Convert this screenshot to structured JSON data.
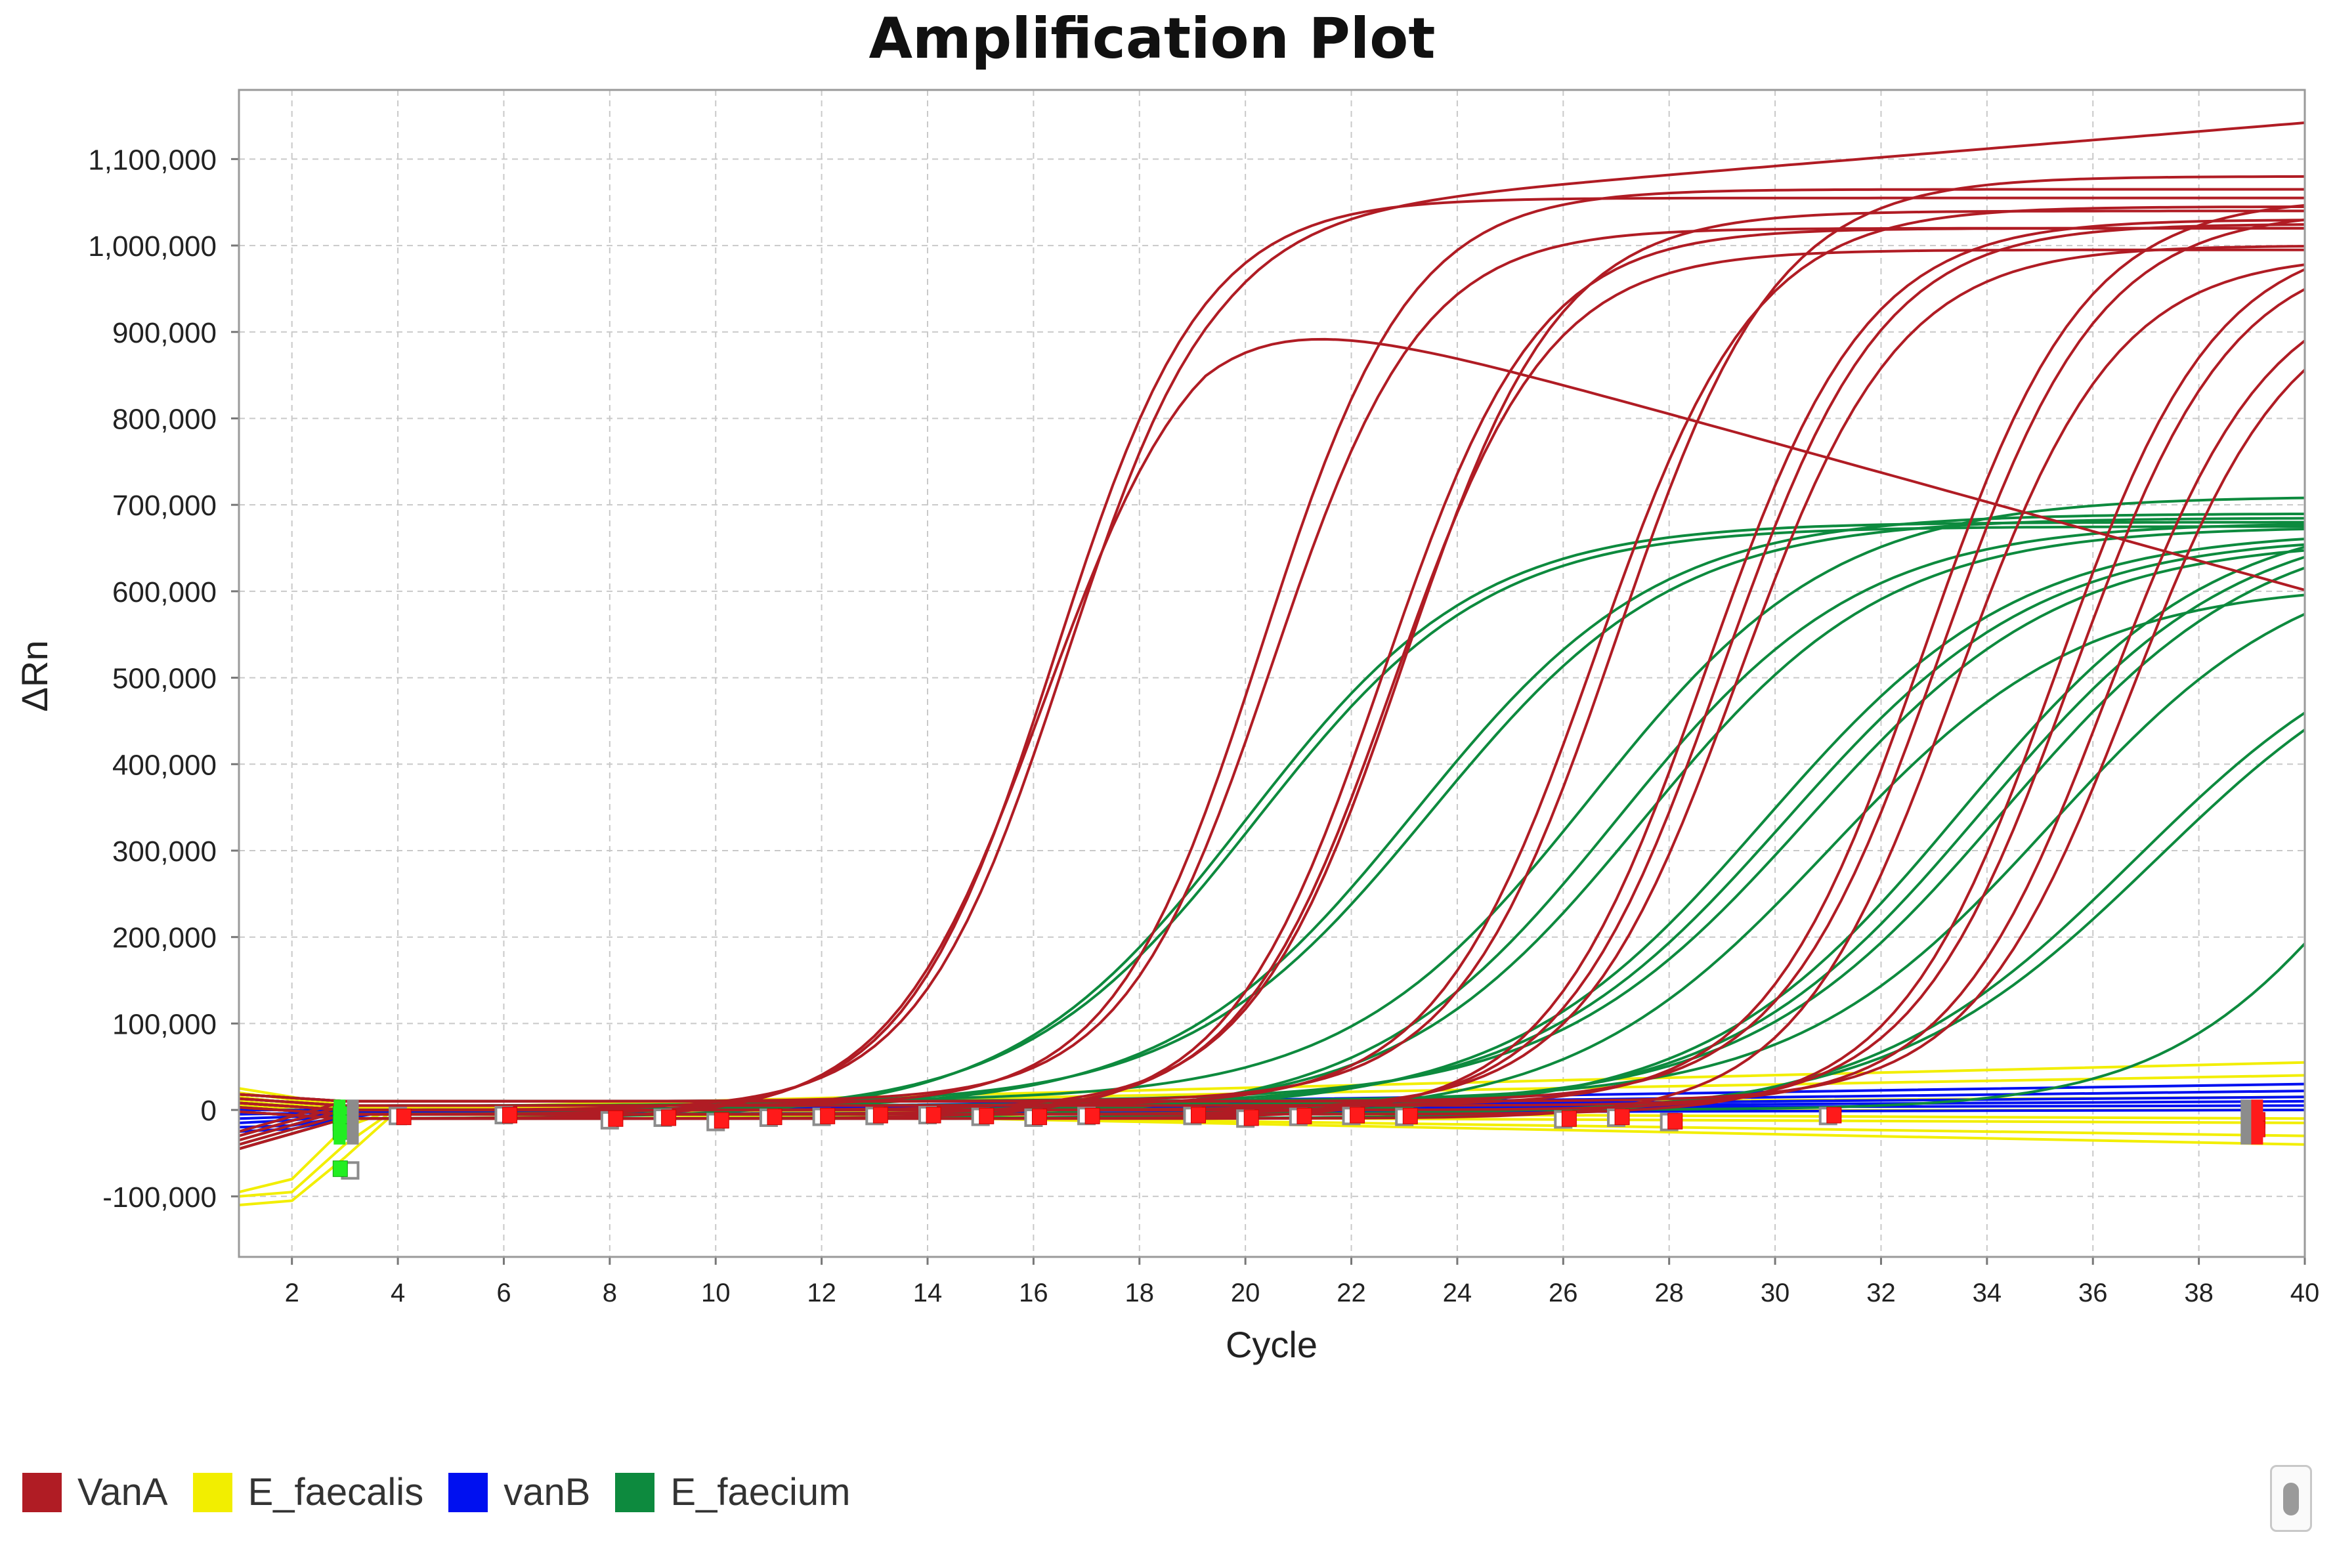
{
  "chart_data": {
    "type": "line",
    "title": "Amplification Plot",
    "xlabel": "Cycle",
    "ylabel": "ΔRn",
    "xlim": [
      1,
      40
    ],
    "ylim": [
      -170000,
      1180000
    ],
    "x_ticks": [
      "2",
      "4",
      "6",
      "8",
      "10",
      "12",
      "14",
      "16",
      "18",
      "20",
      "22",
      "24",
      "26",
      "28",
      "30",
      "32",
      "34",
      "36",
      "38",
      "40"
    ],
    "y_ticks": [
      "-100,000",
      "0",
      "100,000",
      "200,000",
      "300,000",
      "400,000",
      "500,000",
      "600,000",
      "700,000",
      "800,000",
      "900,000",
      "1,000,000",
      "1,100,000"
    ],
    "grid": true,
    "legend_position": "bottom-left",
    "series": [
      {
        "name": "VanA",
        "color": "#b01c24",
        "curves": [
          {
            "ct": 16.2,
            "plateau": 965000,
            "slope": 1.45,
            "drift": -1700
          },
          {
            "ct": 16.4,
            "plateau": 1060000,
            "slope": 1.4,
            "drift": 0
          },
          {
            "ct": 16.6,
            "plateau": 1040000,
            "slope": 1.4,
            "drift": 500
          },
          {
            "ct": 20.3,
            "plateau": 1060000,
            "slope": 1.4,
            "drift": 0
          },
          {
            "ct": 20.5,
            "plateau": 1010000,
            "slope": 1.4,
            "drift": 0
          },
          {
            "ct": 22.6,
            "plateau": 1030000,
            "slope": 1.45,
            "drift": 0
          },
          {
            "ct": 22.8,
            "plateau": 1000000,
            "slope": 1.45,
            "drift": 0
          },
          {
            "ct": 23.0,
            "plateau": 1040000,
            "slope": 1.45,
            "drift": 0
          },
          {
            "ct": 26.6,
            "plateau": 1040000,
            "slope": 1.5,
            "drift": 0
          },
          {
            "ct": 27.0,
            "plateau": 1070000,
            "slope": 1.5,
            "drift": 0
          },
          {
            "ct": 28.7,
            "plateau": 1040000,
            "slope": 1.5,
            "drift": 0
          },
          {
            "ct": 29.0,
            "plateau": 1030000,
            "slope": 1.5,
            "drift": 0
          },
          {
            "ct": 29.3,
            "plateau": 1000000,
            "slope": 1.5,
            "drift": 0
          },
          {
            "ct": 32.8,
            "plateau": 1050000,
            "slope": 1.5,
            "drift": 0
          },
          {
            "ct": 33.1,
            "plateau": 1030000,
            "slope": 1.5,
            "drift": 0
          },
          {
            "ct": 33.4,
            "plateau": 1000000,
            "slope": 1.5,
            "drift": 0
          },
          {
            "ct": 35.3,
            "plateau": 1020000,
            "slope": 1.5,
            "drift": 0
          },
          {
            "ct": 35.6,
            "plateau": 1000000,
            "slope": 1.5,
            "drift": 0
          },
          {
            "ct": 36.3,
            "plateau": 960000,
            "slope": 1.5,
            "drift": 0
          },
          {
            "ct": 36.7,
            "plateau": 940000,
            "slope": 1.5,
            "drift": 0
          }
        ]
      },
      {
        "name": "E_faecalis",
        "color": "#f2ee00",
        "lines": [
          {
            "x": [
              1,
              2,
              3,
              4,
              40
            ],
            "y": [
              -100000,
              -95000,
              -40000,
              3000,
              -40000
            ]
          },
          {
            "x": [
              1,
              2,
              3,
              4,
              40
            ],
            "y": [
              -110000,
              -105000,
              -55000,
              0,
              -30000
            ]
          },
          {
            "x": [
              1,
              2,
              3,
              4,
              40
            ],
            "y": [
              -95000,
              -80000,
              -20000,
              2000,
              40000
            ]
          },
          {
            "x": [
              1,
              2,
              3,
              4,
              40
            ],
            "y": [
              25000,
              15000,
              5000,
              2000,
              55000
            ]
          },
          {
            "x": [
              1,
              2,
              3,
              4,
              40
            ],
            "y": [
              20000,
              12000,
              4000,
              1000,
              15000
            ]
          },
          {
            "x": [
              1,
              2,
              3,
              4,
              40
            ],
            "y": [
              15000,
              8000,
              2000,
              0,
              -10000
            ]
          },
          {
            "x": [
              1,
              2,
              3,
              4,
              40
            ],
            "y": [
              10000,
              5000,
              0,
              -2000,
              0
            ]
          },
          {
            "x": [
              1,
              2,
              3,
              4,
              40
            ],
            "y": [
              5000,
              2000,
              -3000,
              -5000,
              -15000
            ]
          }
        ]
      },
      {
        "name": "vanB",
        "color": "#0010f0",
        "lines": [
          {
            "x": [
              1,
              2,
              3,
              4,
              40
            ],
            "y": [
              -25000,
              -22000,
              -10000,
              0,
              5000
            ]
          },
          {
            "x": [
              1,
              2,
              3,
              4,
              40
            ],
            "y": [
              -20000,
              -18000,
              -8000,
              -2000,
              10000
            ]
          },
          {
            "x": [
              1,
              2,
              3,
              4,
              40
            ],
            "y": [
              -15000,
              -12000,
              -5000,
              -3000,
              15000
            ]
          },
          {
            "x": [
              1,
              2,
              3,
              4,
              40
            ],
            "y": [
              -10000,
              -8000,
              -4000,
              -4000,
              22000
            ]
          },
          {
            "x": [
              1,
              2,
              3,
              4,
              40
            ],
            "y": [
              -5000,
              -4000,
              -2000,
              -5000,
              0
            ]
          },
          {
            "x": [
              1,
              2,
              3,
              4,
              40
            ],
            "y": [
              0,
              0,
              -1000,
              -3000,
              30000
            ]
          }
        ]
      },
      {
        "name": "E_faecium",
        "color": "#0d8a3e",
        "curves": [
          {
            "ct": 20.0,
            "plateau": 690000,
            "slope": 2.2,
            "drift": 0
          },
          {
            "ct": 20.2,
            "plateau": 680000,
            "slope": 2.2,
            "drift": 0
          },
          {
            "ct": 23.2,
            "plateau": 690000,
            "slope": 2.3,
            "drift": 0
          },
          {
            "ct": 23.5,
            "plateau": 680000,
            "slope": 2.3,
            "drift": 0
          },
          {
            "ct": 26.5,
            "plateau": 700000,
            "slope": 2.3,
            "drift": 0
          },
          {
            "ct": 27.0,
            "plateau": 690000,
            "slope": 2.3,
            "drift": 0
          },
          {
            "ct": 27.5,
            "plateau": 680000,
            "slope": 2.3,
            "drift": 0
          },
          {
            "ct": 29.8,
            "plateau": 670000,
            "slope": 2.4,
            "drift": 0
          },
          {
            "ct": 30.2,
            "plateau": 660000,
            "slope": 2.4,
            "drift": 0
          },
          {
            "ct": 30.6,
            "plateau": 650000,
            "slope": 2.4,
            "drift": 0
          },
          {
            "ct": 31.0,
            "plateau": 620000,
            "slope": 2.4,
            "drift": 0
          },
          {
            "ct": 33.5,
            "plateau": 700000,
            "slope": 2.4,
            "drift": 0
          },
          {
            "ct": 33.9,
            "plateau": 690000,
            "slope": 2.4,
            "drift": 0
          },
          {
            "ct": 34.3,
            "plateau": 680000,
            "slope": 2.4,
            "drift": 0
          },
          {
            "ct": 35.2,
            "plateau": 640000,
            "slope": 2.4,
            "drift": 0
          },
          {
            "ct": 36.8,
            "plateau": 600000,
            "slope": 2.5,
            "drift": 0
          },
          {
            "ct": 37.2,
            "plateau": 590000,
            "slope": 2.5,
            "drift": 0
          },
          {
            "ct": 41.5,
            "plateau": 600000,
            "slope": 2.0,
            "drift": 0
          }
        ]
      }
    ],
    "markers": {
      "red": [
        [
          4.1,
          -8000
        ],
        [
          6.1,
          -6000
        ],
        [
          8.1,
          -10000
        ],
        [
          9.1,
          -9000
        ],
        [
          10.1,
          -12000
        ],
        [
          11.1,
          -8000
        ],
        [
          12.1,
          -7000
        ],
        [
          13.1,
          -6000
        ],
        [
          14.1,
          -6000
        ],
        [
          15.1,
          -7000
        ],
        [
          16.1,
          -8000
        ],
        [
          17.1,
          -7000
        ],
        [
          19.1,
          -6000
        ],
        [
          20.1,
          -9000
        ],
        [
          21.1,
          -7000
        ],
        [
          22.1,
          -6000
        ],
        [
          23.1,
          -7000
        ],
        [
          26.1,
          -10000
        ],
        [
          27.1,
          -8000
        ],
        [
          28.1,
          -13000
        ],
        [
          31.1,
          -6000
        ],
        [
          39.1,
          -12000
        ],
        [
          39.1,
          -22000
        ]
      ],
      "gray": [
        [
          3.0,
          -10000
        ],
        [
          4.0,
          -7000
        ],
        [
          6.0,
          -6000
        ],
        [
          8.0,
          -12000
        ],
        [
          9.0,
          -9000
        ],
        [
          10.0,
          -14000
        ],
        [
          11.0,
          -9000
        ],
        [
          12.0,
          -8000
        ],
        [
          13.0,
          -7000
        ],
        [
          14.0,
          -6000
        ],
        [
          15.0,
          -8000
        ],
        [
          16.0,
          -9000
        ],
        [
          17.0,
          -7000
        ],
        [
          19.0,
          -7000
        ],
        [
          20.0,
          -10000
        ],
        [
          21.0,
          -8000
        ],
        [
          22.0,
          -7000
        ],
        [
          23.0,
          -8000
        ],
        [
          26.0,
          -11000
        ],
        [
          27.0,
          -9000
        ],
        [
          28.0,
          -14000
        ],
        [
          31.0,
          -7000
        ],
        [
          3.1,
          -70000
        ]
      ],
      "green": [
        [
          2.9,
          -5000
        ],
        [
          2.9,
          -15000
        ],
        [
          2.9,
          -25000
        ],
        [
          2.9,
          -68000
        ]
      ]
    }
  },
  "legend": {
    "items": [
      {
        "label": "VanA",
        "color": "#b01c24"
      },
      {
        "label": "E_faecalis",
        "color": "#f2ee00"
      },
      {
        "label": "vanB",
        "color": "#0010f0"
      },
      {
        "label": "E_faecium",
        "color": "#0d8a3e"
      }
    ]
  }
}
